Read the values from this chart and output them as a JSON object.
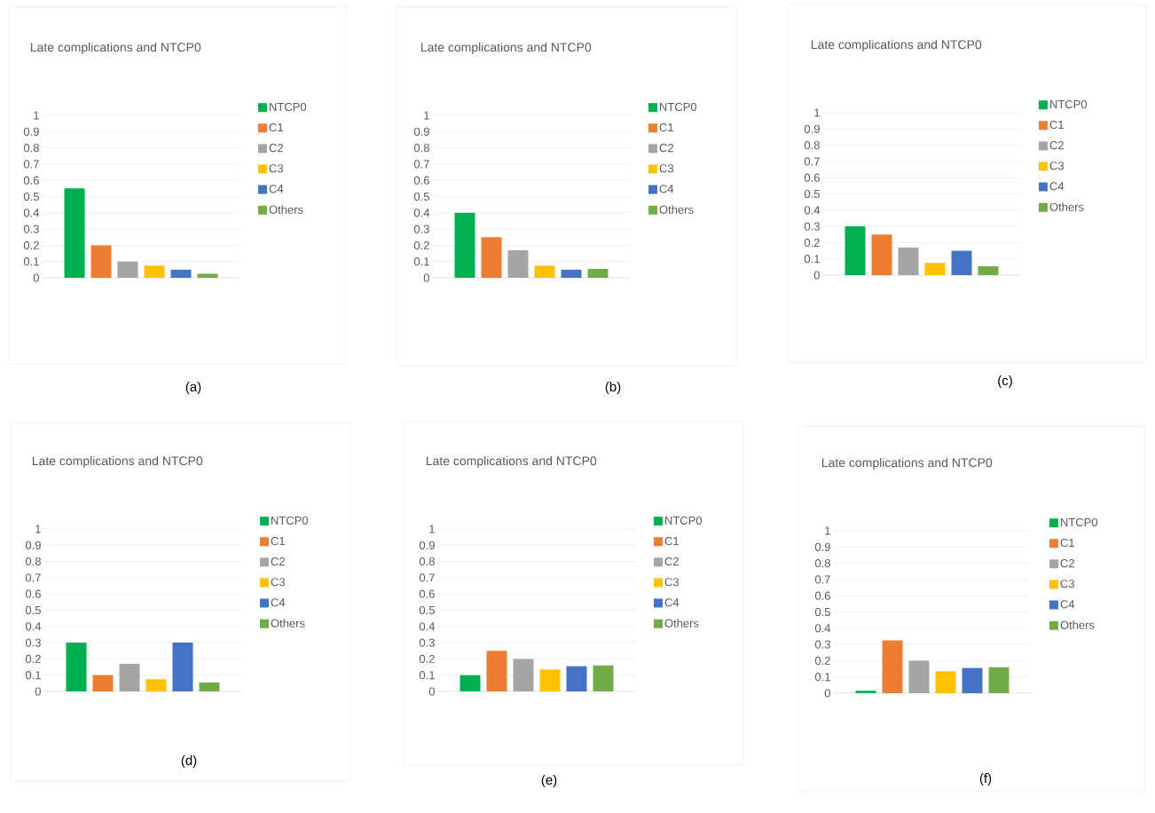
{
  "chart_data": [
    {
      "type": "bar",
      "title": "Late complications and NTCP0",
      "categories": [
        null
      ],
      "ylim": [
        0,
        1
      ],
      "yticks": [
        0,
        0.1,
        0.2,
        0.3,
        0.4,
        0.5,
        0.6,
        0.7,
        0.8,
        0.9,
        1
      ],
      "grid": "y",
      "legend": "right",
      "annotations": [
        "(a)"
      ],
      "series": [
        {
          "name": "NTCP0",
          "color": "#00b050",
          "values": [
            0.55
          ]
        },
        {
          "name": "C1",
          "color": "#ed7d31",
          "values": [
            0.2
          ]
        },
        {
          "name": "C2",
          "color": "#a5a5a5",
          "values": [
            0.1
          ]
        },
        {
          "name": "C3",
          "color": "#ffc000",
          "values": [
            0.075
          ]
        },
        {
          "name": "C4",
          "color": "#4472c4",
          "values": [
            0.05
          ]
        },
        {
          "name": "Others",
          "color": "#70ad47",
          "values": [
            0.025
          ]
        }
      ]
    },
    {
      "type": "bar",
      "title": "Late complications and NTCP0",
      "categories": [
        null
      ],
      "ylim": [
        0,
        1
      ],
      "yticks": [
        0,
        0.1,
        0.2,
        0.3,
        0.4,
        0.5,
        0.6,
        0.7,
        0.8,
        0.9,
        1
      ],
      "grid": "y",
      "legend": "right",
      "annotations": [
        "(b)"
      ],
      "series": [
        {
          "name": "NTCP0",
          "color": "#00b050",
          "values": [
            0.4
          ]
        },
        {
          "name": "C1",
          "color": "#ed7d31",
          "values": [
            0.25
          ]
        },
        {
          "name": "C2",
          "color": "#a5a5a5",
          "values": [
            0.17
          ]
        },
        {
          "name": "C3",
          "color": "#ffc000",
          "values": [
            0.075
          ]
        },
        {
          "name": "C4",
          "color": "#4472c4",
          "values": [
            0.05
          ]
        },
        {
          "name": "Others",
          "color": "#70ad47",
          "values": [
            0.055
          ]
        }
      ]
    },
    {
      "type": "bar",
      "title": "Late complications and NTCP0",
      "categories": [
        null
      ],
      "ylim": [
        0,
        1
      ],
      "yticks": [
        0,
        0.1,
        0.2,
        0.3,
        0.4,
        0.5,
        0.6,
        0.7,
        0.8,
        0.9,
        1
      ],
      "grid": "y",
      "legend": "right",
      "annotations": [
        "(c)"
      ],
      "series": [
        {
          "name": "NTCP0",
          "color": "#00b050",
          "values": [
            0.3
          ]
        },
        {
          "name": "C1",
          "color": "#ed7d31",
          "values": [
            0.25
          ]
        },
        {
          "name": "C2",
          "color": "#a5a5a5",
          "values": [
            0.17
          ]
        },
        {
          "name": "C3",
          "color": "#ffc000",
          "values": [
            0.075
          ]
        },
        {
          "name": "C4",
          "color": "#4472c4",
          "values": [
            0.15
          ]
        },
        {
          "name": "Others",
          "color": "#70ad47",
          "values": [
            0.055
          ]
        }
      ]
    },
    {
      "type": "bar",
      "title": "Late complications and NTCP0",
      "categories": [
        null
      ],
      "ylim": [
        0,
        1
      ],
      "yticks": [
        0,
        0.1,
        0.2,
        0.3,
        0.4,
        0.5,
        0.6,
        0.7,
        0.8,
        0.9,
        1
      ],
      "grid": "y",
      "legend": "right",
      "annotations": [
        "(d)"
      ],
      "series": [
        {
          "name": "NTCP0",
          "color": "#00b050",
          "values": [
            0.3
          ]
        },
        {
          "name": "C1",
          "color": "#ed7d31",
          "values": [
            0.1
          ]
        },
        {
          "name": "C2",
          "color": "#a5a5a5",
          "values": [
            0.17
          ]
        },
        {
          "name": "C3",
          "color": "#ffc000",
          "values": [
            0.075
          ]
        },
        {
          "name": "C4",
          "color": "#4472c4",
          "values": [
            0.3
          ]
        },
        {
          "name": "Others",
          "color": "#70ad47",
          "values": [
            0.055
          ]
        }
      ]
    },
    {
      "type": "bar",
      "title": "Late complications and NTCP0",
      "categories": [
        null
      ],
      "ylim": [
        0,
        1
      ],
      "yticks": [
        0,
        0.1,
        0.2,
        0.3,
        0.4,
        0.5,
        0.6,
        0.7,
        0.8,
        0.9,
        1
      ],
      "grid": "y",
      "legend": "right",
      "annotations": [
        "(e)"
      ],
      "series": [
        {
          "name": "NTCP0",
          "color": "#00b050",
          "values": [
            0.1
          ]
        },
        {
          "name": "C1",
          "color": "#ed7d31",
          "values": [
            0.25
          ]
        },
        {
          "name": "C2",
          "color": "#a5a5a5",
          "values": [
            0.2
          ]
        },
        {
          "name": "C3",
          "color": "#ffc000",
          "values": [
            0.135
          ]
        },
        {
          "name": "C4",
          "color": "#4472c4",
          "values": [
            0.155
          ]
        },
        {
          "name": "Others",
          "color": "#70ad47",
          "values": [
            0.16
          ]
        }
      ]
    },
    {
      "type": "bar",
      "title": "Late complications and NTCP0",
      "categories": [
        null
      ],
      "ylim": [
        0,
        1
      ],
      "yticks": [
        0,
        0.1,
        0.2,
        0.3,
        0.4,
        0.5,
        0.6,
        0.7,
        0.8,
        0.9,
        1
      ],
      "grid": "y",
      "legend": "right",
      "annotations": [
        "(f)"
      ],
      "series": [
        {
          "name": "NTCP0",
          "color": "#00b050",
          "values": [
            0.015
          ]
        },
        {
          "name": "C1",
          "color": "#ed7d31",
          "values": [
            0.325
          ]
        },
        {
          "name": "C2",
          "color": "#a5a5a5",
          "values": [
            0.2
          ]
        },
        {
          "name": "C3",
          "color": "#ffc000",
          "values": [
            0.135
          ]
        },
        {
          "name": "C4",
          "color": "#4472c4",
          "values": [
            0.155
          ]
        },
        {
          "name": "Others",
          "color": "#70ad47",
          "values": [
            0.16
          ]
        }
      ]
    }
  ]
}
